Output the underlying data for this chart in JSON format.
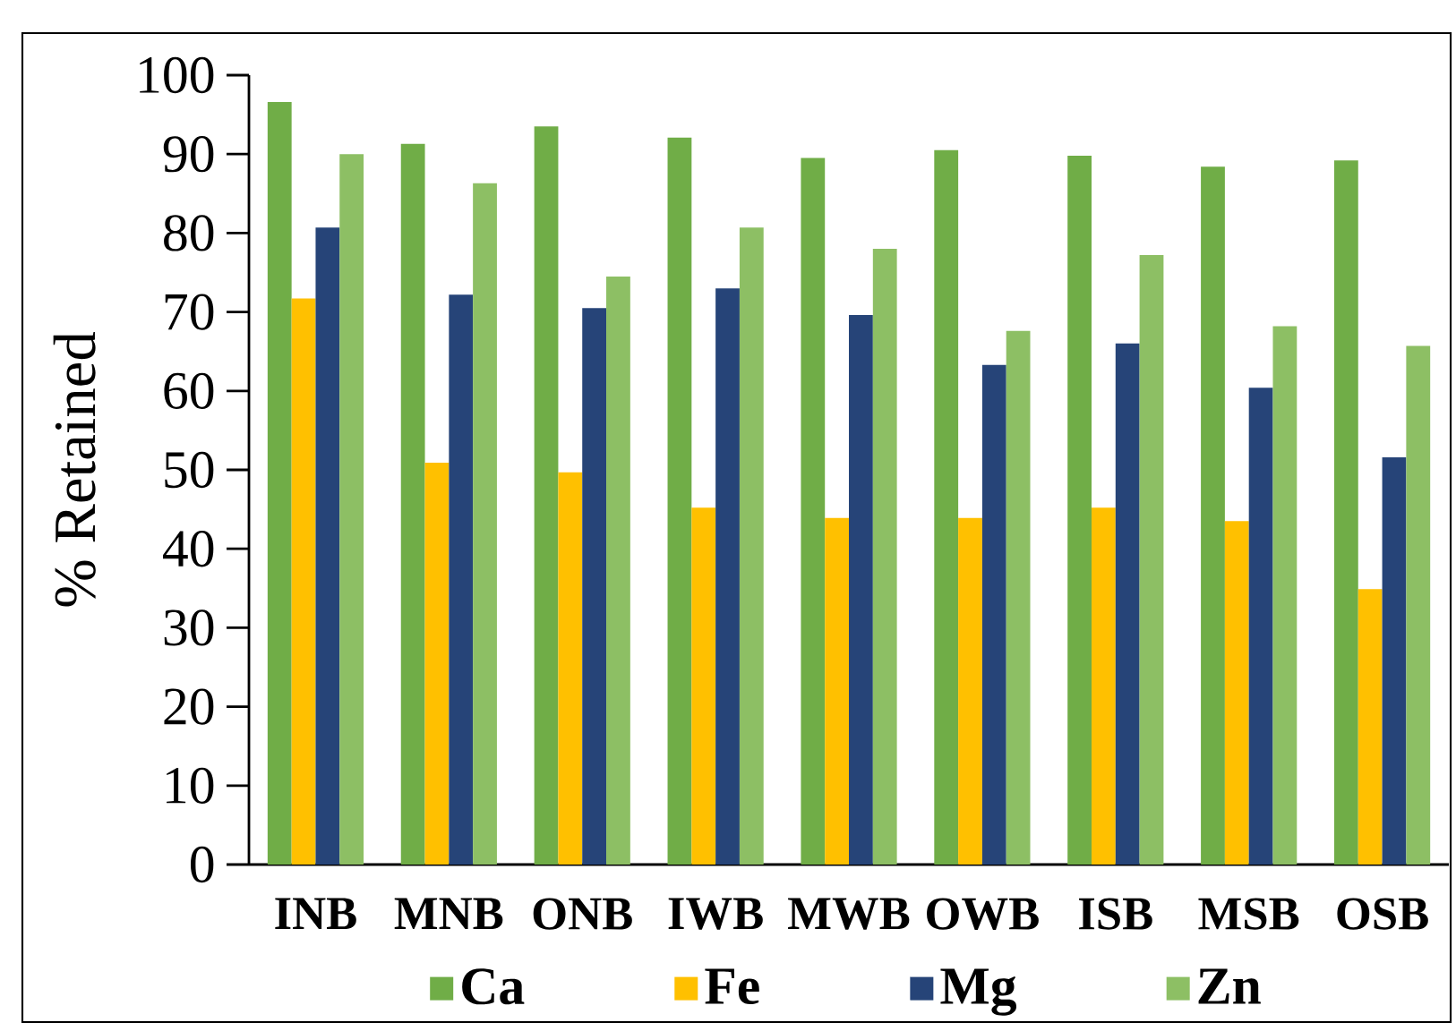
{
  "chart_data": {
    "type": "bar",
    "ylabel": "% Retained",
    "categories": [
      "INB",
      "MNB",
      "ONB",
      "IWB",
      "MWB",
      "OWB",
      "ISB",
      "MSB",
      "OSB"
    ],
    "series": [
      {
        "name": "Ca",
        "color": "#70ad47",
        "values": [
          96.6,
          91.3,
          93.5,
          92.1,
          89.5,
          90.5,
          89.8,
          88.4,
          89.2
        ]
      },
      {
        "name": "Fe",
        "color": "#ffc000",
        "values": [
          71.7,
          50.9,
          49.7,
          45.2,
          43.9,
          43.9,
          45.2,
          43.5,
          34.9
        ]
      },
      {
        "name": "Mg",
        "color": "#264478",
        "values": [
          80.7,
          72.2,
          70.5,
          73.0,
          69.6,
          63.3,
          66.0,
          60.4,
          51.6
        ]
      },
      {
        "name": "Zn",
        "color": "#8dbf64",
        "values": [
          90.0,
          86.3,
          74.5,
          80.7,
          78.0,
          67.6,
          77.2,
          68.2,
          65.7
        ]
      }
    ],
    "ylim": [
      0,
      100
    ],
    "yticks": [
      0,
      10,
      20,
      30,
      40,
      50,
      60,
      70,
      80,
      90,
      100
    ],
    "legend": "bottom"
  }
}
